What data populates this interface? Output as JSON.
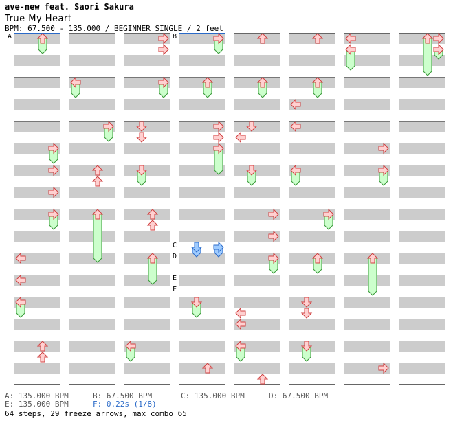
{
  "song": {
    "artist": "ave-new feat. Saori Sakura",
    "title": "True My Heart",
    "info": "BPM: 67.500 - 135.000 / BEGINNER SINGLE / 2 feet"
  },
  "colors": {
    "arrow_fill": "#ffd0d0",
    "arrow_stroke": "#d04040",
    "freeze_fill": "#ccffcc",
    "freeze_stroke": "#3a9a3a",
    "shock_fill": "#9ecbff",
    "shock_stroke": "#2a6ac8",
    "stripe": "#cccccc",
    "marker_line": "#2a6ac8"
  },
  "chart_data": {
    "type": "stepchart",
    "columns": 8,
    "measures_per_column": 8,
    "lanes": [
      "left",
      "down",
      "up",
      "right"
    ],
    "notes": [
      {
        "m": 0,
        "b": 0,
        "lane": "up",
        "len": 1.25
      },
      {
        "m": 2,
        "b": 2,
        "lane": "right",
        "len": 1.25
      },
      {
        "m": 3,
        "b": 0,
        "lane": "right"
      },
      {
        "m": 3,
        "b": 2,
        "lane": "right"
      },
      {
        "m": 4,
        "b": 0,
        "lane": "right",
        "len": 1.25
      },
      {
        "m": 5,
        "b": 0,
        "lane": "left"
      },
      {
        "m": 5,
        "b": 2,
        "lane": "left"
      },
      {
        "m": 6,
        "b": 0,
        "lane": "left",
        "len": 1.25
      },
      {
        "m": 7,
        "b": 0,
        "lane": "up"
      },
      {
        "m": 7,
        "b": 1,
        "lane": "up"
      },
      {
        "m": 9,
        "b": 0,
        "lane": "left",
        "len": 1.25
      },
      {
        "m": 10,
        "b": 0,
        "lane": "right",
        "len": 1.25
      },
      {
        "m": 11,
        "b": 0,
        "lane": "up"
      },
      {
        "m": 11,
        "b": 1,
        "lane": "up"
      },
      {
        "m": 12,
        "b": 0,
        "lane": "up",
        "len": 4.25
      },
      {
        "m": 16,
        "b": 0,
        "lane": "right"
      },
      {
        "m": 16,
        "b": 1,
        "lane": "right"
      },
      {
        "m": 17,
        "b": 0,
        "lane": "right",
        "len": 1.25
      },
      {
        "m": 18,
        "b": 0,
        "lane": "down"
      },
      {
        "m": 18,
        "b": 1,
        "lane": "down"
      },
      {
        "m": 19,
        "b": 0,
        "lane": "down",
        "len": 1.25
      },
      {
        "m": 20,
        "b": 0,
        "lane": "up"
      },
      {
        "m": 20,
        "b": 1,
        "lane": "up"
      },
      {
        "m": 21,
        "b": 0,
        "lane": "up",
        "len": 2.25
      },
      {
        "m": 23,
        "b": 0,
        "lane": "left",
        "len": 1.25
      },
      {
        "m": 24,
        "b": 0,
        "lane": "right",
        "len": 1.25
      },
      {
        "m": 25,
        "b": 0,
        "lane": "up",
        "len": 1.25
      },
      {
        "m": 26,
        "b": 0,
        "lane": "right"
      },
      {
        "m": 26,
        "b": 1,
        "lane": "right"
      },
      {
        "m": 26,
        "b": 2,
        "lane": "right",
        "len": 2.25
      },
      {
        "m": 28,
        "b": 3,
        "lane": "down",
        "len": 0.75,
        "shock": true
      },
      {
        "m": 28,
        "b": 3,
        "lane": "right",
        "len": 0.75,
        "shock": true
      },
      {
        "m": 30,
        "b": 0,
        "lane": "down",
        "len": 1.25
      },
      {
        "m": 31,
        "b": 2,
        "lane": "up"
      },
      {
        "m": 32,
        "b": 0,
        "lane": "up"
      },
      {
        "m": 33,
        "b": 0,
        "lane": "up",
        "len": 1.25
      },
      {
        "m": 34,
        "b": 1,
        "lane": "left"
      },
      {
        "m": 34,
        "b": 0,
        "lane": "down"
      },
      {
        "m": 35,
        "b": 0,
        "lane": "down",
        "len": 1.25
      },
      {
        "m": 36,
        "b": 2,
        "lane": "right"
      },
      {
        "m": 36,
        "b": 0,
        "lane": "right"
      },
      {
        "m": 37,
        "b": 0,
        "lane": "right",
        "len": 1.25
      },
      {
        "m": 38,
        "b": 1,
        "lane": "left"
      },
      {
        "m": 38,
        "b": 2,
        "lane": "left"
      },
      {
        "m": 39,
        "b": 0,
        "lane": "left",
        "len": 1.25
      },
      {
        "m": 39,
        "b": 3,
        "lane": "up"
      },
      {
        "m": 40,
        "b": 0,
        "lane": "up"
      },
      {
        "m": 41,
        "b": 0,
        "lane": "up",
        "len": 1.25
      },
      {
        "m": 41,
        "b": 2,
        "lane": "left"
      },
      {
        "m": 42,
        "b": 0,
        "lane": "left"
      },
      {
        "m": 43,
        "b": 0,
        "lane": "left",
        "len": 1.25
      },
      {
        "m": 44,
        "b": 0,
        "lane": "right",
        "len": 1.25
      },
      {
        "m": 45,
        "b": 0,
        "lane": "up",
        "len": 1.25
      },
      {
        "m": 46,
        "b": 1,
        "lane": "down"
      },
      {
        "m": 46,
        "b": 0,
        "lane": "down"
      },
      {
        "m": 47,
        "b": 0,
        "lane": "down",
        "len": 1.25
      },
      {
        "m": 48,
        "b": 0,
        "lane": "left"
      },
      {
        "m": 48,
        "b": 1,
        "lane": "left",
        "len": 1.75
      },
      {
        "m": 50,
        "b": 2,
        "lane": "right"
      },
      {
        "m": 51,
        "b": 0,
        "lane": "right",
        "len": 1.25
      },
      {
        "m": 53,
        "b": 0,
        "lane": "up",
        "len": 3.25
      },
      {
        "m": 55,
        "b": 2,
        "lane": "right"
      },
      {
        "m": 56,
        "b": 0,
        "lane": "right"
      },
      {
        "m": 56,
        "b": 1,
        "lane": "right",
        "len": 0.75
      },
      {
        "m": 56,
        "b": 0,
        "lane": "up",
        "len": 3.25
      }
    ],
    "markers": [
      {
        "label": "A",
        "m": 0,
        "b": 0
      },
      {
        "label": "B",
        "m": 24,
        "b": 0
      },
      {
        "label": "C",
        "m": 28,
        "b": 3
      },
      {
        "label": "D",
        "m": 29,
        "b": 0
      },
      {
        "label": "E",
        "m": 29,
        "b": 2
      },
      {
        "label": "F",
        "m": 29,
        "b": 3
      }
    ]
  },
  "legend": {
    "a": "A: 135.000 BPM",
    "b": "B: 67.500 BPM",
    "c": "C: 135.000 BPM",
    "d": "D: 67.500 BPM",
    "e": "E: 135.000 BPM",
    "f": "F: 0.22s (1/8)"
  },
  "summary": "64 steps, 29 freeze arrows, max combo 65"
}
